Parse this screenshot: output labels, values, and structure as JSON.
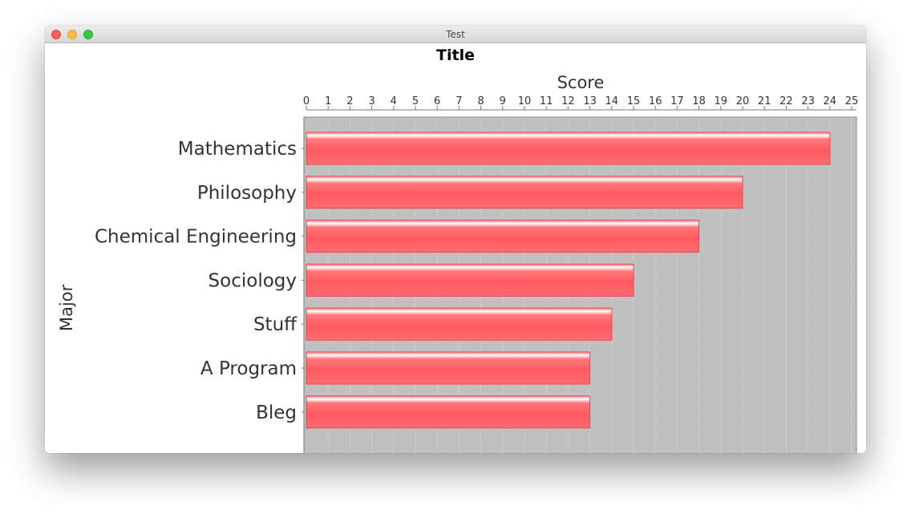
{
  "window": {
    "title": "Test"
  },
  "chart_data": {
    "type": "bar",
    "orientation": "horizontal",
    "title": "Title",
    "xlabel": "Score",
    "ylabel": "Major",
    "xlim": [
      0,
      25
    ],
    "x_ticks": [
      0,
      1,
      2,
      3,
      4,
      5,
      6,
      7,
      8,
      9,
      10,
      11,
      12,
      13,
      14,
      15,
      16,
      17,
      18,
      19,
      20,
      21,
      22,
      23,
      24,
      25
    ],
    "x_axis_position": "top",
    "grid": true,
    "categories": [
      "Mathematics",
      "Philosophy",
      "Chemical Engineering",
      "Sociology",
      "Stuff",
      "A Program",
      "Bleg"
    ],
    "values": [
      24,
      20,
      18,
      15,
      14,
      13,
      13
    ],
    "bar_color": "#ff5a5f",
    "plot_background": "#c0c0c0"
  }
}
